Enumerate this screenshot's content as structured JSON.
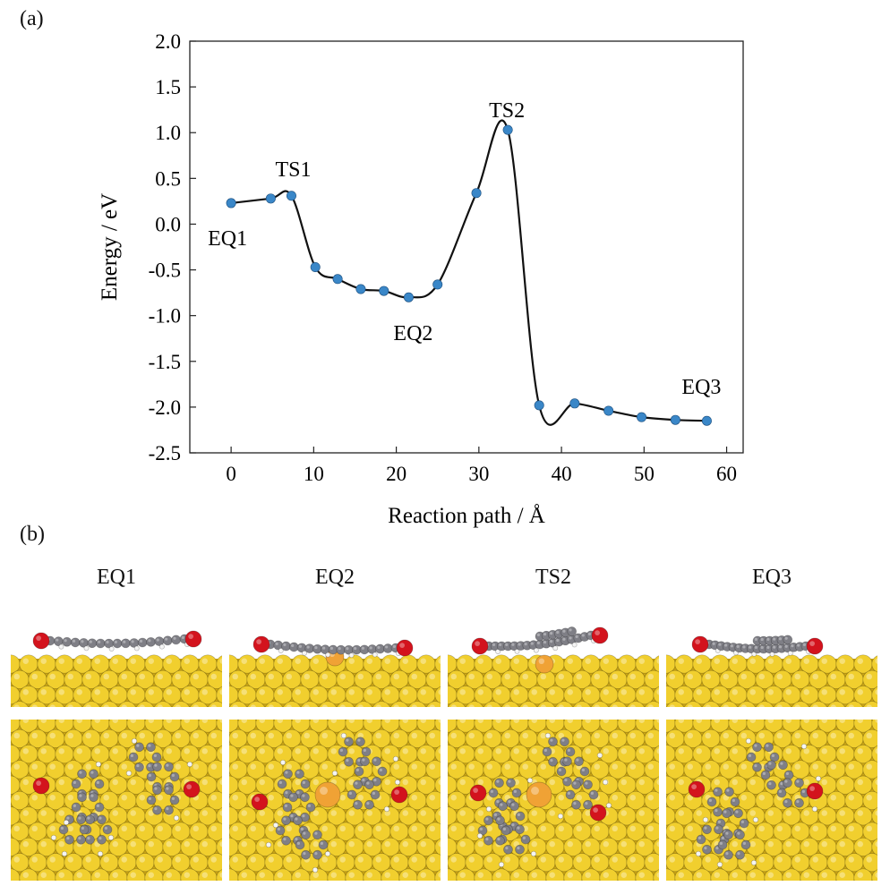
{
  "figure": {
    "panel_a_label": "(a)",
    "panel_b_label": "(b)"
  },
  "chart_data": {
    "type": "line",
    "title": "",
    "xlabel": "Reaction path / Å",
    "ylabel": "Energy / eV",
    "xlim": [
      -5,
      62
    ],
    "ylim": [
      -2.5,
      2.0
    ],
    "xticks": [
      0,
      10,
      20,
      30,
      40,
      50,
      60
    ],
    "yticks": [
      2.0,
      1.5,
      1.0,
      0.5,
      0.0,
      -0.5,
      -1.0,
      -1.5,
      -2.0,
      -2.5
    ],
    "xtick_labels": [
      "0",
      "10",
      "20",
      "30",
      "40",
      "50",
      "60"
    ],
    "ytick_labels": [
      "2.0",
      "1.5",
      "1.0",
      "0.5",
      "0.0",
      "-0.5",
      "-1.0",
      "-1.5",
      "-2.0",
      "-2.5"
    ],
    "grid": false,
    "series": [
      {
        "marker_color": "#3a87c8",
        "line_color": "#111111",
        "x": [
          0,
          4.8,
          7.3,
          10.2,
          12.9,
          15.7,
          18.5,
          21.5,
          25.0,
          29.7,
          33.5,
          37.3,
          41.6,
          45.7,
          49.7,
          53.8,
          57.6
        ],
        "y": [
          0.23,
          0.28,
          0.31,
          -0.47,
          -0.6,
          -0.71,
          -0.73,
          -0.8,
          -0.66,
          0.34,
          1.03,
          -1.98,
          -1.96,
          -2.04,
          -2.11,
          -2.14,
          -2.15
        ]
      }
    ],
    "annotations": [
      {
        "text": "EQ1",
        "x": 0,
        "y": 0.23
      },
      {
        "text": "TS1",
        "x": 7.3,
        "y": 0.31
      },
      {
        "text": "EQ2",
        "x": 21.5,
        "y": -0.8
      },
      {
        "text": "TS2",
        "x": 33.5,
        "y": 1.03
      },
      {
        "text": "EQ3",
        "x": 57.6,
        "y": -2.15
      }
    ]
  },
  "structures": {
    "columns": [
      {
        "label": "EQ1"
      },
      {
        "label": "EQ2"
      },
      {
        "label": "TS2"
      },
      {
        "label": "EQ3"
      }
    ],
    "colors": {
      "gold": "#f1cf2e",
      "gold_dark": "#c9a414",
      "carbon": "#7f7f86",
      "hydrogen": "#f4f4f4",
      "oxygen": "#d3131d",
      "adatom": "#f0a235"
    }
  }
}
